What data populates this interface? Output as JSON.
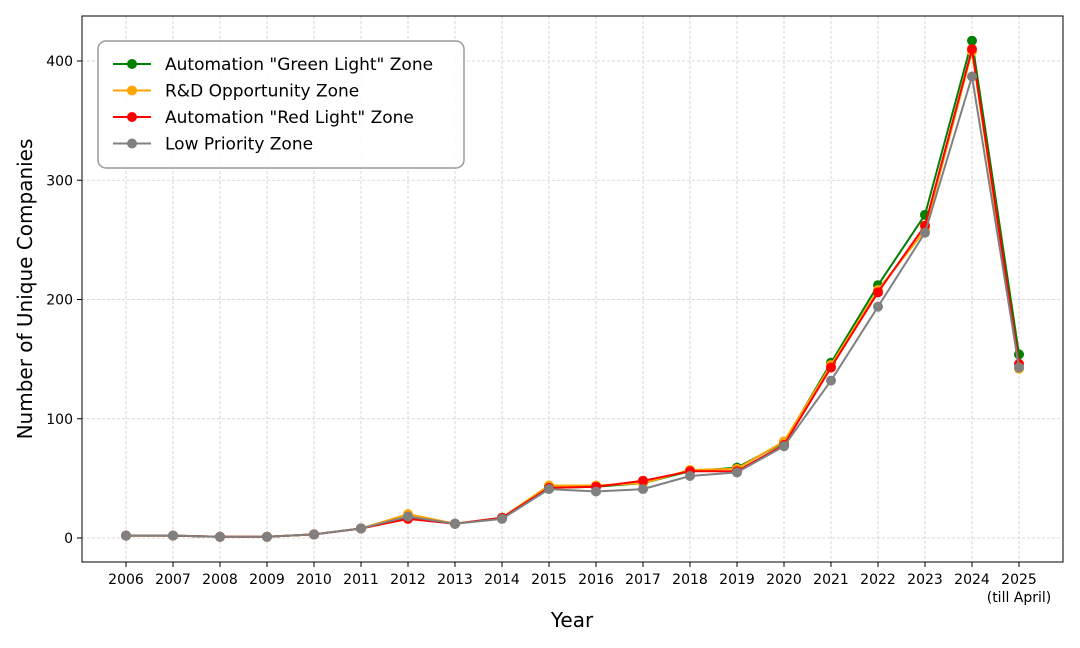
{
  "chart_data": {
    "type": "line",
    "title": "",
    "xlabel": "Year",
    "ylabel": "Number of Unique Companies",
    "categories": [
      "2006",
      "2007",
      "2008",
      "2009",
      "2010",
      "2011",
      "2012",
      "2013",
      "2014",
      "2015",
      "2016",
      "2017",
      "2018",
      "2019",
      "2020",
      "2021",
      "2022",
      "2023",
      "2024",
      "2025"
    ],
    "category_sublabels": {
      "2025": "(till April)"
    },
    "ylim": [
      -20,
      438
    ],
    "yticks": [
      0,
      100,
      200,
      300,
      400
    ],
    "grid": true,
    "legend_position": "top-left",
    "series": [
      {
        "name": "Automation \"Green Light\" Zone",
        "color": "#008000",
        "values": [
          2,
          2,
          1,
          1,
          3,
          8,
          17,
          12,
          17,
          42,
          43,
          46,
          56,
          59,
          80,
          147,
          212,
          271,
          417,
          154
        ]
      },
      {
        "name": "R&D Opportunity Zone",
        "color": "#ffa500",
        "values": [
          2,
          2,
          1,
          1,
          3,
          8,
          20,
          12,
          17,
          44,
          44,
          46,
          57,
          58,
          81,
          145,
          208,
          258,
          408,
          142
        ]
      },
      {
        "name": "Automation \"Red Light\" Zone",
        "color": "#ff0000",
        "values": [
          2,
          2,
          1,
          1,
          3,
          8,
          16,
          12,
          17,
          42,
          43,
          48,
          56,
          56,
          78,
          143,
          206,
          262,
          410,
          146
        ]
      },
      {
        "name": "Low Priority Zone",
        "color": "#808080",
        "values": [
          2,
          2,
          1,
          1,
          3,
          8,
          18,
          12,
          16,
          41,
          39,
          41,
          52,
          55,
          77,
          132,
          194,
          256,
          387,
          143
        ]
      }
    ]
  }
}
